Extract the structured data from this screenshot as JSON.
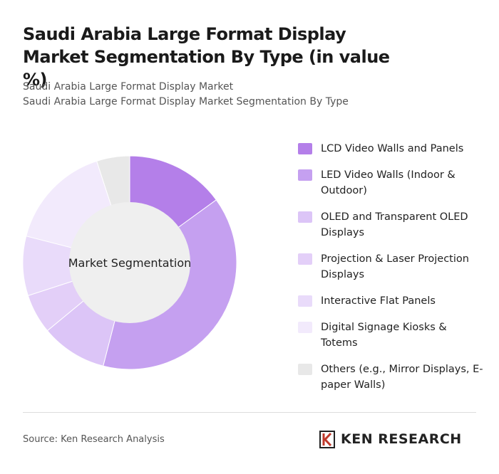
{
  "chart_data": {
    "type": "donut",
    "title": "Saudi Arabia Large Format Display Market Segmentation By Type (in value %)",
    "subtitle": [
      "Saudi Arabia Large Format Display Market",
      "Saudi Arabia Large Format Display Market Segmentation By Type"
    ],
    "center_label": "Market Segmentation",
    "categories": [
      "LCD Video Walls and Panels",
      "LED Video Walls (Indoor & Outdoor)",
      "OLED and Transparent OLED Displays",
      "Projection & Laser Projection Displays",
      "Interactive Flat Panels",
      "Digital Signage Kiosks & Totems",
      "Others (e.g., Mirror Displays, E-paper Walls)"
    ],
    "values": [
      15,
      39,
      10,
      6,
      9,
      16,
      5
    ],
    "colors": [
      "#b47fe9",
      "#c5a0f0",
      "#dcc5f7",
      "#e3cff8",
      "#e9dbfa",
      "#f2eafc",
      "#e8e8e8"
    ],
    "legend": "right"
  },
  "footer": {
    "source": "Source: Ken Research Analysis",
    "brand": "KEN RESEARCH"
  }
}
